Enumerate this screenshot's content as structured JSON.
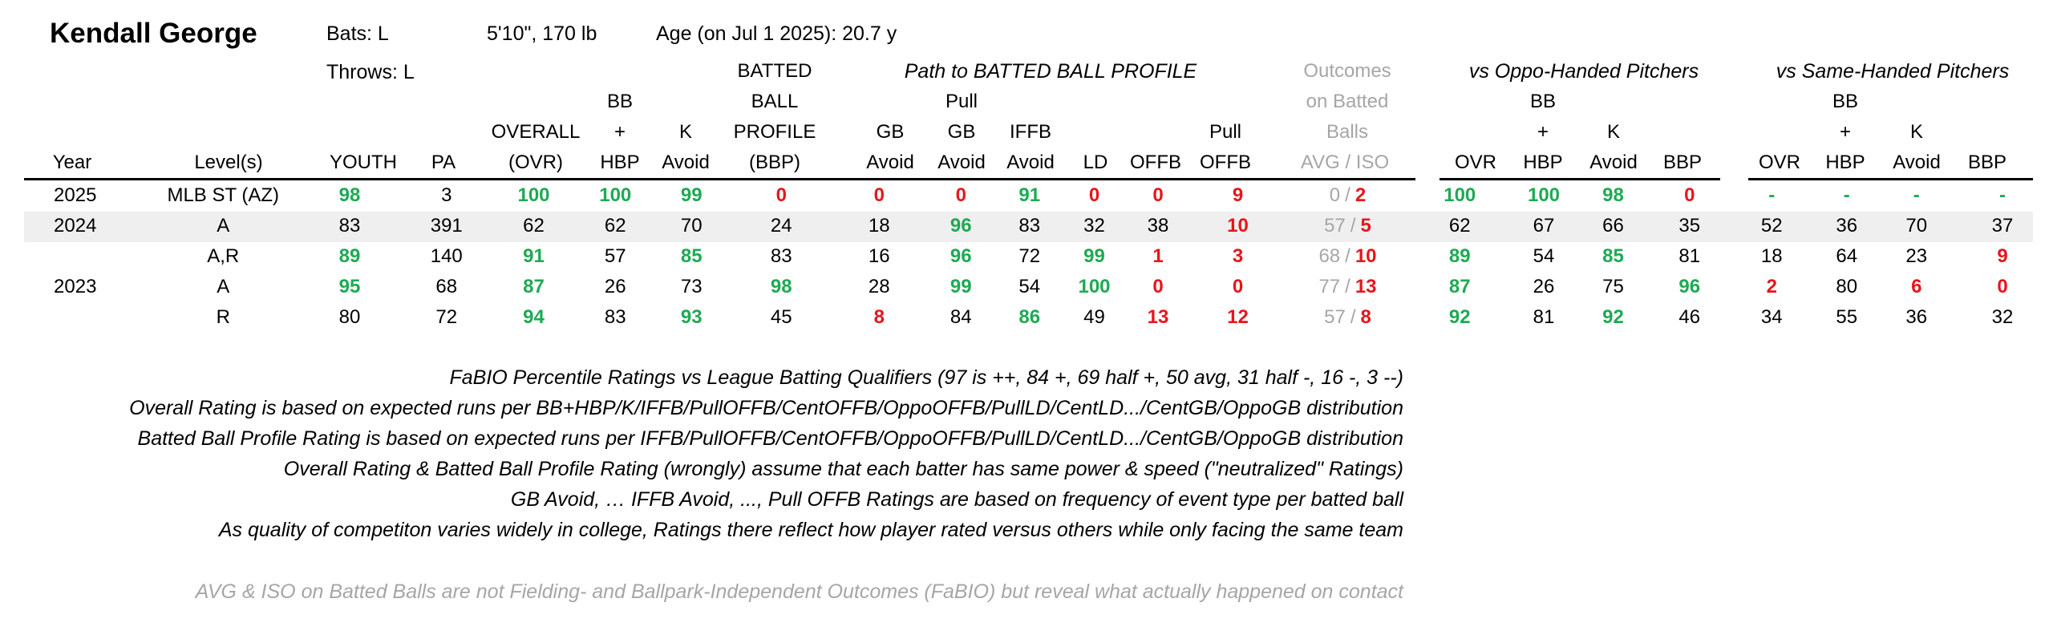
{
  "player": {
    "name": "Kendall George",
    "bats": "Bats: L",
    "throws": "Throws: L",
    "height_weight": "5'10\", 170 lb",
    "age": "Age (on Jul 1 2025): 20.7 y"
  },
  "group_headers": {
    "path": "Path to BATTED BALL PROFILE",
    "outcomes": [
      "Outcomes",
      "on Batted",
      "Balls"
    ],
    "oppo": "vs Oppo-Handed Pitchers",
    "same": "vs Same-Handed Pitchers"
  },
  "column_headers": [
    {
      "id": "year",
      "lines": [
        "Year"
      ]
    },
    {
      "id": "level",
      "lines": [
        "Level(s)"
      ]
    },
    {
      "id": "youth",
      "lines": [
        "YOUTH"
      ]
    },
    {
      "id": "pa",
      "lines": [
        "PA"
      ]
    },
    {
      "id": "ovr",
      "lines": [
        "OVERALL",
        "(OVR)"
      ]
    },
    {
      "id": "bbhbp",
      "lines": [
        "BB",
        "+",
        "HBP"
      ]
    },
    {
      "id": "kavoid",
      "lines": [
        "K",
        "Avoid"
      ]
    },
    {
      "id": "bbp",
      "lines": [
        "BATTED",
        "BALL",
        "PROFILE",
        "(BBP)"
      ]
    },
    {
      "id": "gbavoid",
      "lines": [
        "GB",
        "Avoid"
      ]
    },
    {
      "id": "pullgb",
      "lines": [
        "Pull",
        "GB",
        "Avoid"
      ]
    },
    {
      "id": "iffb",
      "lines": [
        "IFFB",
        "Avoid"
      ]
    },
    {
      "id": "ld",
      "lines": [
        "LD"
      ]
    },
    {
      "id": "offb",
      "lines": [
        "OFFB"
      ]
    },
    {
      "id": "pulloffb",
      "lines": [
        "Pull",
        "OFFB"
      ]
    },
    {
      "id": "avgiso",
      "lines": [
        "AVG  /  ISO"
      ]
    },
    {
      "id": "o_ovr",
      "lines": [
        "OVR"
      ]
    },
    {
      "id": "o_bbhbp",
      "lines": [
        "BB",
        "+",
        "HBP"
      ]
    },
    {
      "id": "o_kavoid",
      "lines": [
        "K",
        "Avoid"
      ]
    },
    {
      "id": "o_bbp",
      "lines": [
        "BBP"
      ]
    },
    {
      "id": "s_ovr",
      "lines": [
        "OVR"
      ]
    },
    {
      "id": "s_bbhbp",
      "lines": [
        "BB",
        "+",
        "HBP"
      ]
    },
    {
      "id": "s_kavoid",
      "lines": [
        "K",
        "Avoid"
      ]
    },
    {
      "id": "s_bbp",
      "lines": [
        "BBP"
      ]
    }
  ],
  "rows": [
    {
      "year": "2025",
      "level": "MLB ST (AZ)",
      "youth": "98",
      "pa": "3",
      "ovr": "100",
      "bbhbp": "100",
      "kavoid": "99",
      "bbp": "0",
      "gbavoid": "0",
      "pullgb": "0",
      "iffb": "91",
      "ld": "0",
      "offb": "0",
      "pulloffb": "9",
      "avg": "0",
      "iso": "2",
      "o_ovr": "100",
      "o_bbhbp": "100",
      "o_kavoid": "98",
      "o_bbp": "0",
      "s_ovr": "-",
      "s_bbhbp": "-",
      "s_kavoid": "-",
      "s_bbp": "-"
    },
    {
      "year": "2024",
      "level": "A",
      "youth": "83",
      "pa": "391",
      "ovr": "62",
      "bbhbp": "62",
      "kavoid": "70",
      "bbp": "24",
      "gbavoid": "18",
      "pullgb": "96",
      "iffb": "83",
      "ld": "32",
      "offb": "38",
      "pulloffb": "10",
      "avg": "57",
      "iso": "5",
      "o_ovr": "62",
      "o_bbhbp": "67",
      "o_kavoid": "66",
      "o_bbp": "35",
      "s_ovr": "52",
      "s_bbhbp": "36",
      "s_kavoid": "70",
      "s_bbp": "37"
    },
    {
      "year": "",
      "level": "A,R",
      "youth": "89",
      "pa": "140",
      "ovr": "91",
      "bbhbp": "57",
      "kavoid": "85",
      "bbp": "83",
      "gbavoid": "16",
      "pullgb": "96",
      "iffb": "72",
      "ld": "99",
      "offb": "1",
      "pulloffb": "3",
      "avg": "68",
      "iso": "10",
      "o_ovr": "89",
      "o_bbhbp": "54",
      "o_kavoid": "85",
      "o_bbp": "81",
      "s_ovr": "18",
      "s_bbhbp": "64",
      "s_kavoid": "23",
      "s_bbp": "9"
    },
    {
      "year": "2023",
      "level": "A",
      "youth": "95",
      "pa": "68",
      "ovr": "87",
      "bbhbp": "26",
      "kavoid": "73",
      "bbp": "98",
      "gbavoid": "28",
      "pullgb": "99",
      "iffb": "54",
      "ld": "100",
      "offb": "0",
      "pulloffb": "0",
      "avg": "77",
      "iso": "13",
      "o_ovr": "87",
      "o_bbhbp": "26",
      "o_kavoid": "75",
      "o_bbp": "96",
      "s_ovr": "2",
      "s_bbhbp": "80",
      "s_kavoid": "6",
      "s_bbp": "0"
    },
    {
      "year": "",
      "level": "R",
      "youth": "80",
      "pa": "72",
      "ovr": "94",
      "bbhbp": "83",
      "kavoid": "93",
      "bbp": "45",
      "gbavoid": "8",
      "pullgb": "84",
      "iffb": "86",
      "ld": "49",
      "offb": "13",
      "pulloffb": "12",
      "avg": "57",
      "iso": "8",
      "o_ovr": "92",
      "o_bbhbp": "81",
      "o_kavoid": "92",
      "o_bbp": "46",
      "s_ovr": "34",
      "s_bbhbp": "55",
      "s_kavoid": "36",
      "s_bbp": "32"
    }
  ],
  "colors": {
    "high": "#1eaa53",
    "low": "#e8141c",
    "muted": "#a6a6a6"
  },
  "notes": [
    "FaBIO Percentile Ratings vs League Batting Qualifiers (97 is ++, 84 +, 69 half +, 50 avg, 31 half -, 16 -, 3 --)",
    "Overall Rating is based on expected runs per BB+HBP/K/IFFB/PullOFFB/CentOFFB/OppoOFFB/PullLD/CentLD.../CentGB/OppoGB distribution",
    "Batted Ball Profile Rating is based on expected runs per IFFB/PullOFFB/CentOFFB/OppoOFFB/PullLD/CentLD.../CentGB/OppoGB distribution",
    "Overall Rating & Batted Ball Profile Rating (wrongly) assume that each batter has same power & speed (\"neutralized\" Ratings)",
    "GB Avoid, … IFFB Avoid, ..., Pull OFFB Ratings are based on frequency of event type per batted ball",
    "As quality of competiton varies widely in college, Ratings there reflect how player rated versus others while only facing the same team"
  ],
  "footnote": "AVG & ISO on Batted Balls are not Fielding- and Ballpark-Independent Outcomes (FaBIO) but reveal what actually happened on contact"
}
